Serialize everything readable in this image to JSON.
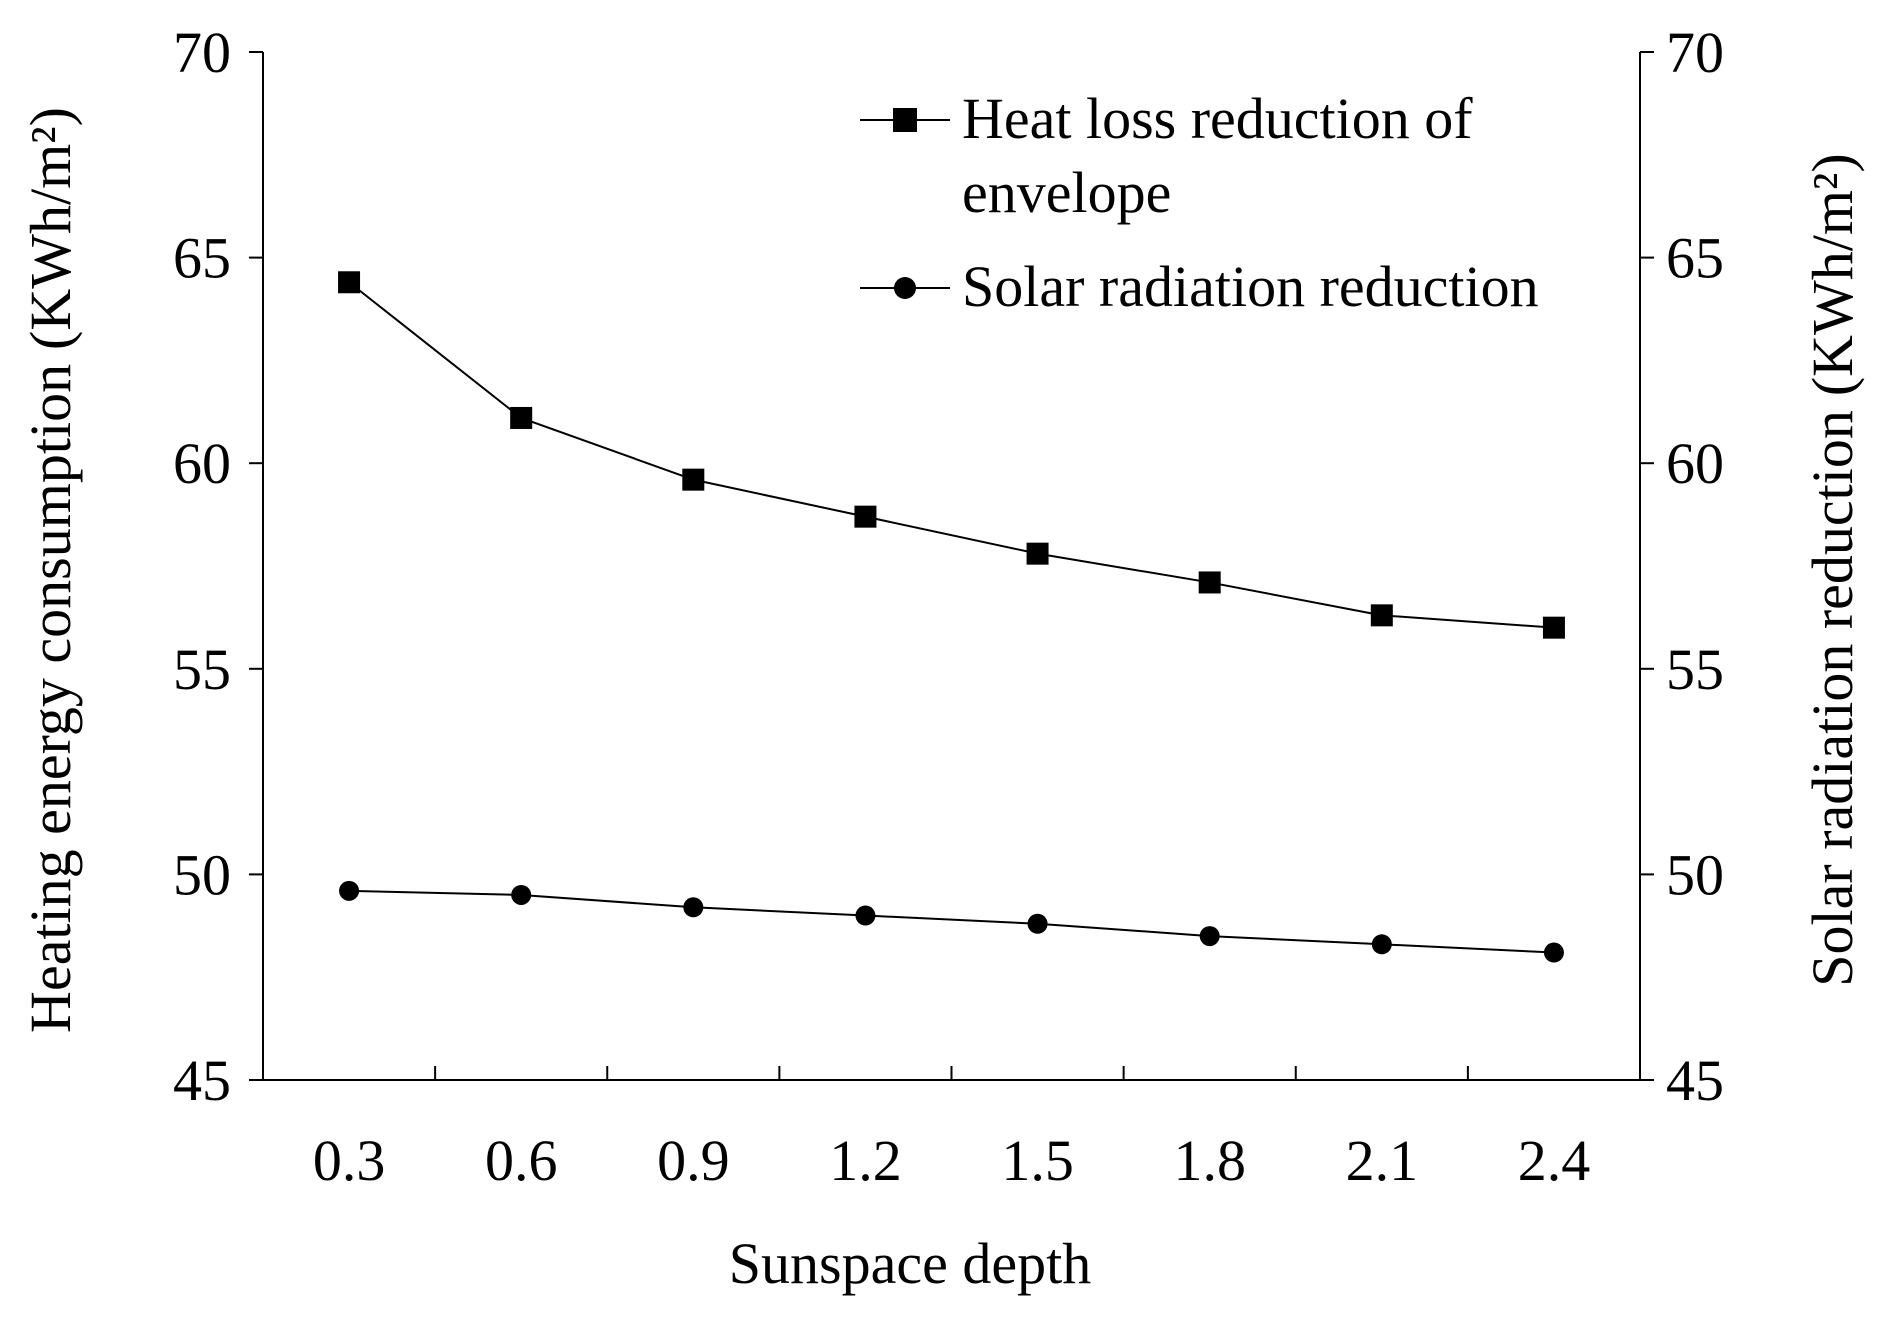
{
  "chart_data": {
    "type": "line",
    "xlabel": "Sunspace depth",
    "ylabel_left": "Heating energy consumption",
    "ylabel_left_unit": "(KWh/m²)",
    "ylabel_right": "Solar radiation reduction",
    "ylabel_right_unit": "(KWh/m²)",
    "categories": [
      "0.3",
      "0.6",
      "0.9",
      "1.2",
      "1.5",
      "1.8",
      "2.1",
      "2.4"
    ],
    "ylim": [
      45,
      70
    ],
    "yticks": [
      "45",
      "50",
      "55",
      "60",
      "65",
      "70"
    ],
    "y2lim": [
      45,
      70
    ],
    "y2ticks": [
      "45",
      "50",
      "55",
      "60",
      "65",
      "70"
    ],
    "grid": false,
    "legend_position": "top-right",
    "series": [
      {
        "name": "Heat loss reduction of envelope",
        "name_line1": "Heat loss reduction of",
        "name_line2": "envelope",
        "marker": "square",
        "values": [
          64.4,
          61.1,
          59.6,
          58.7,
          57.8,
          57.1,
          56.3,
          56.0
        ]
      },
      {
        "name": "Solar radiation reduction",
        "marker": "circle",
        "values": [
          49.6,
          49.5,
          49.2,
          49.0,
          48.8,
          48.5,
          48.3,
          48.1
        ]
      }
    ],
    "color": "#000000"
  }
}
